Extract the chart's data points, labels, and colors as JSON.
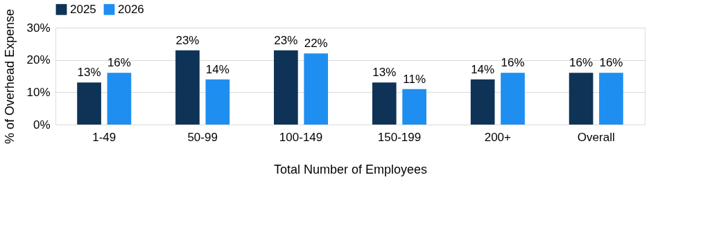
{
  "chart_data": {
    "type": "bar",
    "xlabel": "Total Number of Employees",
    "ylabel": "% of Overhead Expense",
    "categories": [
      "1-49",
      "50-99",
      "100-149",
      "150-199",
      "200+",
      "Overall"
    ],
    "series": [
      {
        "name": "2025",
        "color": "#0e3356",
        "values": [
          13,
          23,
          23,
          13,
          14,
          16
        ],
        "value_labels": [
          "13%",
          "23%",
          "23%",
          "13%",
          "14%",
          "16%"
        ]
      },
      {
        "name": "2026",
        "color": "#1e8ff0",
        "values": [
          16,
          14,
          22,
          11,
          16,
          16
        ],
        "value_labels": [
          "16%",
          "14%",
          "22%",
          "11%",
          "16%",
          "16%"
        ]
      }
    ],
    "ylim": [
      0,
      30
    ],
    "yticks": [
      {
        "value": 0,
        "label": "0%"
      },
      {
        "value": 10,
        "label": "10%"
      },
      {
        "value": 20,
        "label": "20%"
      },
      {
        "value": 30,
        "label": "30%"
      }
    ],
    "grid": "y",
    "legend": "top"
  }
}
